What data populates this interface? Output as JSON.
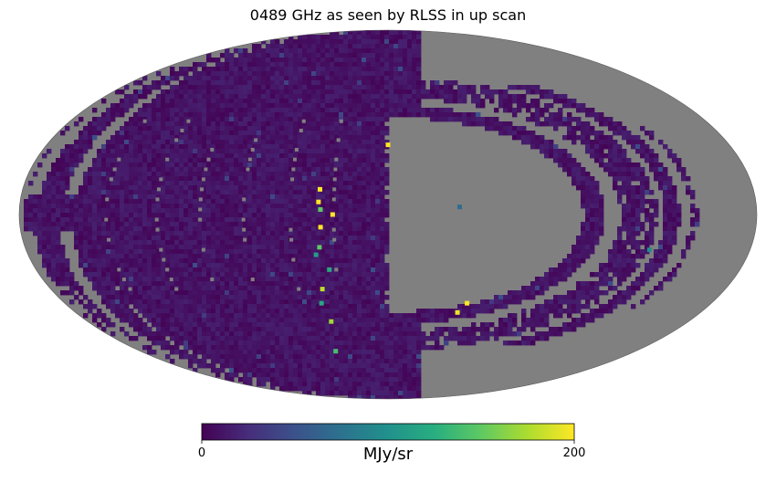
{
  "chart_data": {
    "type": "heatmap",
    "projection": "mollweide",
    "title": "0489 GHz as seen by RLSS in up scan",
    "colormap": "viridis",
    "colorbar": {
      "unit": "MJy/sr",
      "min": 0,
      "max": 200,
      "min_label": "0",
      "max_label": "200",
      "placement": "bottom"
    },
    "background_value": 10,
    "missing_color": "#808080",
    "hot_pixels": [
      {
        "lon": 0.0,
        "lat": 28.0,
        "value": 200
      },
      {
        "lon": -44.0,
        "lat": -36.0,
        "value": 200
      },
      {
        "lon": -130.0,
        "lat": -14.0,
        "value": 95
      },
      {
        "lon": -40.0,
        "lat": -40.0,
        "value": 195
      },
      {
        "lon": 33.0,
        "lat": 2.0,
        "value": 150
      },
      {
        "lon": 33.5,
        "lat": 10.0,
        "value": 200
      },
      {
        "lon": 34.0,
        "lat": 5.0,
        "value": 200
      },
      {
        "lon": 33.0,
        "lat": -5.0,
        "value": 200
      },
      {
        "lon": 27.0,
        "lat": 0.0,
        "value": 200
      },
      {
        "lon": 35.0,
        "lat": -30.0,
        "value": 180
      },
      {
        "lon": 34.0,
        "lat": -13.0,
        "value": 150
      },
      {
        "lon": 37.0,
        "lat": -36.0,
        "value": 120
      },
      {
        "lon": 34.0,
        "lat": -44.0,
        "value": 170
      },
      {
        "lon": 38.0,
        "lat": -58.0,
        "value": 140
      },
      {
        "lon": 36.0,
        "lat": -16.0,
        "value": 110
      },
      {
        "lon": 30.0,
        "lat": -22.0,
        "value": 120
      },
      {
        "lon": -35.0,
        "lat": 3.0,
        "value": 70
      }
    ]
  }
}
